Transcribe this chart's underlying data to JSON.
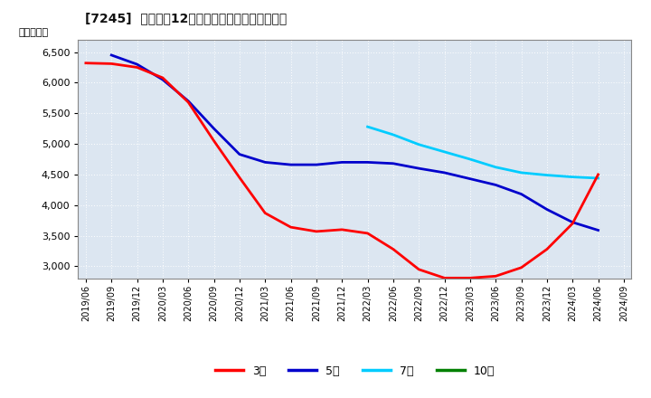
{
  "title": "[7245]  経常利益12か月移動合計の平均値の推移",
  "ylabel": "（百万円）",
  "background_color": "#ffffff",
  "plot_background_color": "#dce6f1",
  "grid_color": "#ffffff",
  "ylim": [
    2800,
    6700
  ],
  "yticks": [
    3000,
    3500,
    4000,
    4500,
    5000,
    5500,
    6000,
    6500
  ],
  "legend_labels": [
    "3年",
    "5年",
    "7年",
    "10年"
  ],
  "legend_colors": [
    "#ff0000",
    "#0000cc",
    "#00ccff",
    "#008000"
  ],
  "series": {
    "3year": {
      "color": "#ff0000",
      "x": [
        0,
        1,
        2,
        3,
        4,
        5,
        6,
        7,
        8,
        9,
        10,
        11,
        12,
        13,
        14,
        15,
        16,
        17,
        18,
        19,
        20
      ],
      "y": [
        6320,
        6310,
        6250,
        6080,
        5680,
        5050,
        4450,
        3870,
        3640,
        3570,
        3600,
        3540,
        3280,
        2950,
        2810,
        2810,
        2840,
        2980,
        3280,
        3700,
        4500
      ]
    },
    "5year": {
      "color": "#0000cc",
      "x": [
        1,
        2,
        3,
        4,
        5,
        6,
        7,
        8,
        9,
        10,
        11,
        12,
        13,
        14,
        15,
        16,
        17,
        18,
        19,
        20
      ],
      "y": [
        6450,
        6300,
        6050,
        5700,
        5250,
        4830,
        4700,
        4660,
        4660,
        4700,
        4700,
        4680,
        4600,
        4530,
        4430,
        4330,
        4180,
        3930,
        3720,
        3590
      ]
    },
    "7year": {
      "color": "#00ccff",
      "x": [
        11,
        12,
        13,
        14,
        15,
        16,
        17,
        18,
        19,
        20
      ],
      "y": [
        5280,
        5150,
        4990,
        4870,
        4750,
        4620,
        4530,
        4490,
        4460,
        4440
      ]
    },
    "10year": {
      "color": "#008000",
      "x": [],
      "y": []
    }
  },
  "xtick_labels": [
    "2019/06",
    "2019/09",
    "2019/12",
    "2020/03",
    "2020/06",
    "2020/09",
    "2020/12",
    "2021/03",
    "2021/06",
    "2021/09",
    "2021/12",
    "2022/03",
    "2022/06",
    "2022/09",
    "2022/12",
    "2023/03",
    "2023/06",
    "2023/09",
    "2023/12",
    "2024/03",
    "2024/06",
    "2024/09"
  ],
  "n_xticks": 22
}
